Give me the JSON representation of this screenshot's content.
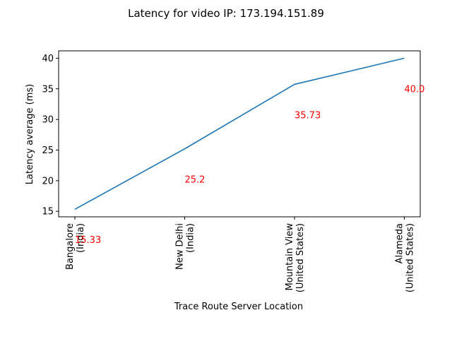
{
  "chart_data": {
    "type": "line",
    "title": "Latency for video IP: 173.194.151.89",
    "xlabel": "Trace Route Server Location",
    "ylabel": "Latency average (ms)",
    "categories": [
      [
        "Bangalore",
        "(India)"
      ],
      [
        "New Delhi",
        "(India)"
      ],
      [
        "Mountain View",
        "(United States)"
      ],
      [
        "Alameda",
        "(United States)"
      ]
    ],
    "series": [
      {
        "values": [
          15.33,
          25.2,
          35.73,
          40.0
        ]
      }
    ],
    "data_labels": [
      "15.33",
      "25.2",
      "35.73",
      "40.0"
    ],
    "yticks": [
      15,
      20,
      25,
      30,
      35,
      40
    ],
    "ylim": [
      14.1,
      41.2
    ],
    "grid": false,
    "colors": {
      "line": "#1f77b4",
      "data_label": "#ff0000",
      "axis": "#000000"
    }
  }
}
